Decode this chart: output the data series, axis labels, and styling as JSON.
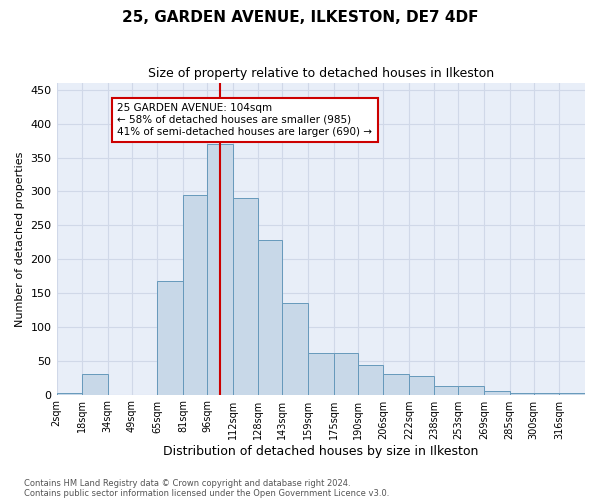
{
  "title1": "25, GARDEN AVENUE, ILKESTON, DE7 4DF",
  "title2": "Size of property relative to detached houses in Ilkeston",
  "xlabel": "Distribution of detached houses by size in Ilkeston",
  "ylabel": "Number of detached properties",
  "annotation_line1": "25 GARDEN AVENUE: 104sqm",
  "annotation_line2": "← 58% of detached houses are smaller (985)",
  "annotation_line3": "41% of semi-detached houses are larger (690) →",
  "footer_line1": "Contains HM Land Registry data © Crown copyright and database right 2024.",
  "footer_line2": "Contains public sector information licensed under the Open Government Licence v3.0.",
  "bar_color": "#c8d8e8",
  "bar_edge_color": "#6699bb",
  "vline_x": 104,
  "vline_color": "#cc0000",
  "categories": [
    "2sqm",
    "18sqm",
    "34sqm",
    "49sqm",
    "65sqm",
    "81sqm",
    "96sqm",
    "112sqm",
    "128sqm",
    "143sqm",
    "159sqm",
    "175sqm",
    "190sqm",
    "206sqm",
    "222sqm",
    "238sqm",
    "253sqm",
    "269sqm",
    "285sqm",
    "300sqm",
    "316sqm"
  ],
  "bin_edges": [
    2,
    18,
    34,
    49,
    65,
    81,
    96,
    112,
    128,
    143,
    159,
    175,
    190,
    206,
    222,
    238,
    253,
    269,
    285,
    300,
    316,
    332
  ],
  "values": [
    3,
    30,
    0,
    0,
    168,
    295,
    370,
    290,
    228,
    135,
    62,
    62,
    43,
    30,
    28,
    12,
    13,
    5,
    3,
    2,
    2
  ],
  "ylim": [
    0,
    460
  ],
  "yticks": [
    0,
    50,
    100,
    150,
    200,
    250,
    300,
    350,
    400,
    450
  ],
  "annotation_box_color": "white",
  "annotation_box_edge": "#cc0000",
  "grid_color": "#d0d8e8",
  "background_color": "#e8eef8",
  "fig_width": 6.0,
  "fig_height": 5.0,
  "dpi": 100
}
